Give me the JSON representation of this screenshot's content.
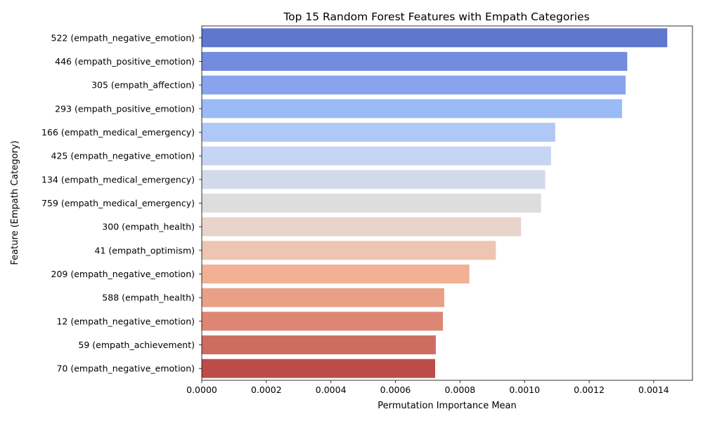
{
  "chart_data": {
    "type": "bar",
    "orientation": "horizontal",
    "title": "Top 15 Random Forest Features with Empath Categories",
    "xlabel": "Permutation Importance Mean",
    "ylabel": "Feature (Empath Category)",
    "xlim": [
      0,
      0.00152
    ],
    "xticks": [
      "0.0000",
      "0.0002",
      "0.0004",
      "0.0006",
      "0.0008",
      "0.0010",
      "0.0012",
      "0.0014"
    ],
    "xtick_values": [
      0,
      0.0002,
      0.0004,
      0.0006,
      0.0008,
      0.001,
      0.0012,
      0.0014
    ],
    "grid": false,
    "palette": "coolwarm",
    "categories": [
      "522 (empath_negative_emotion)",
      "446 (empath_positive_emotion)",
      "305 (empath_affection)",
      "293 (empath_positive_emotion)",
      "166 (empath_medical_emergency)",
      "425 (empath_negative_emotion)",
      "134 (empath_medical_emergency)",
      "759 (empath_medical_emergency)",
      "300 (empath_health)",
      "41 (empath_optimism)",
      "209 (empath_negative_emotion)",
      "588 (empath_health)",
      "12 (empath_negative_emotion)",
      "59 (empath_achievement)",
      "70 (empath_negative_emotion)"
    ],
    "values": [
      0.001442,
      0.001318,
      0.001313,
      0.001302,
      0.001095,
      0.001082,
      0.001064,
      0.001051,
      0.000989,
      0.000911,
      0.000829,
      0.000751,
      0.000747,
      0.000725,
      0.000723
    ],
    "colors": [
      "#5f77cc",
      "#748cdd",
      "#88a4ec",
      "#9bbbf7",
      "#b0c8f6",
      "#c5d5f3",
      "#d2daea",
      "#dddddd",
      "#e8d4ca",
      "#eec5b1",
      "#f1b195",
      "#e8a086",
      "#dd8673",
      "#cd6d62",
      "#bc4c4a"
    ]
  }
}
